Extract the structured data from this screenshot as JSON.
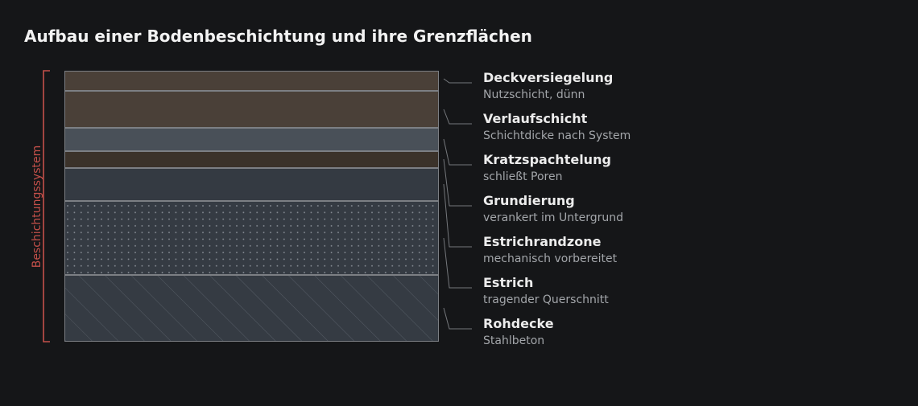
{
  "title": "Aufbau einer Bodenbeschichtung und ihre Grenzflächen",
  "system_label": "Beschichtungssystem",
  "colors": {
    "background": "#151618",
    "accent": "#c4504a",
    "layer_border": "#7c7f84",
    "leader": "#75787c"
  },
  "layers": [
    {
      "name": "Deckversiegelung",
      "description": "Nutzschicht, dünn",
      "fill": "#4a4038",
      "pattern": "none"
    },
    {
      "name": "Verlaufschicht",
      "description": "Schichtdicke nach System",
      "fill": "#4a4038",
      "pattern": "none"
    },
    {
      "name": "Kratzspachtelung",
      "description": "schließt Poren",
      "fill": "#495058",
      "pattern": "none"
    },
    {
      "name": "Grundierung",
      "description": "verankert im Untergrund",
      "fill": "#3b322a",
      "pattern": "none"
    },
    {
      "name": "Estrichrandzone",
      "description": "mechanisch vorbereitet",
      "fill": "#343a42",
      "pattern": "none"
    },
    {
      "name": "Estrich",
      "description": "tragender Querschnitt",
      "fill": "#353b43",
      "pattern": "dots"
    },
    {
      "name": "Rohdecke",
      "description": "Stahlbeton",
      "fill": "#353b43",
      "pattern": "hatch"
    }
  ]
}
